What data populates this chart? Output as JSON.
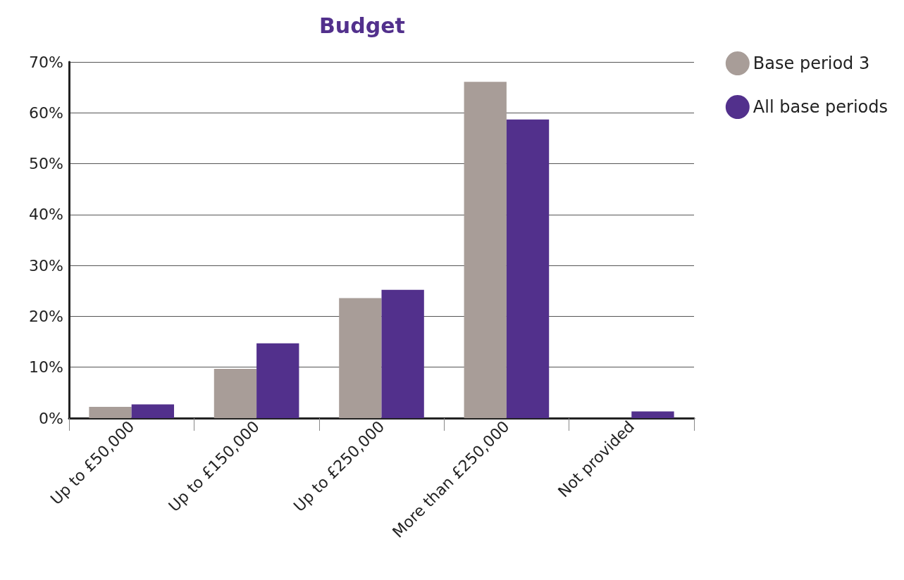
{
  "chart_data": {
    "type": "bar",
    "title": "Budget",
    "categories": [
      "Up to £50,000",
      "Up to £150,000",
      "Up to £250,000",
      "More than £250,000",
      "Not provided"
    ],
    "series": [
      {
        "name": "Base period 3",
        "color": "#a89d98",
        "values": [
          2.2,
          9.7,
          23.6,
          66.1,
          0
        ]
      },
      {
        "name": "All base periods",
        "color": "#52308c",
        "values": [
          2.7,
          14.7,
          25.2,
          58.7,
          1.3
        ]
      }
    ],
    "ylim": [
      0,
      70
    ],
    "yticks": [
      {
        "value": 0,
        "label": "0%"
      },
      {
        "value": 10,
        "label": "10%"
      },
      {
        "value": 20,
        "label": "20%"
      },
      {
        "value": 30,
        "label": "30%"
      },
      {
        "value": 40,
        "label": "40%"
      },
      {
        "value": 50,
        "label": "50%"
      },
      {
        "value": 60,
        "label": "60%"
      },
      {
        "value": 70,
        "label": "70%"
      }
    ],
    "grid": "y",
    "legend": "top right"
  }
}
